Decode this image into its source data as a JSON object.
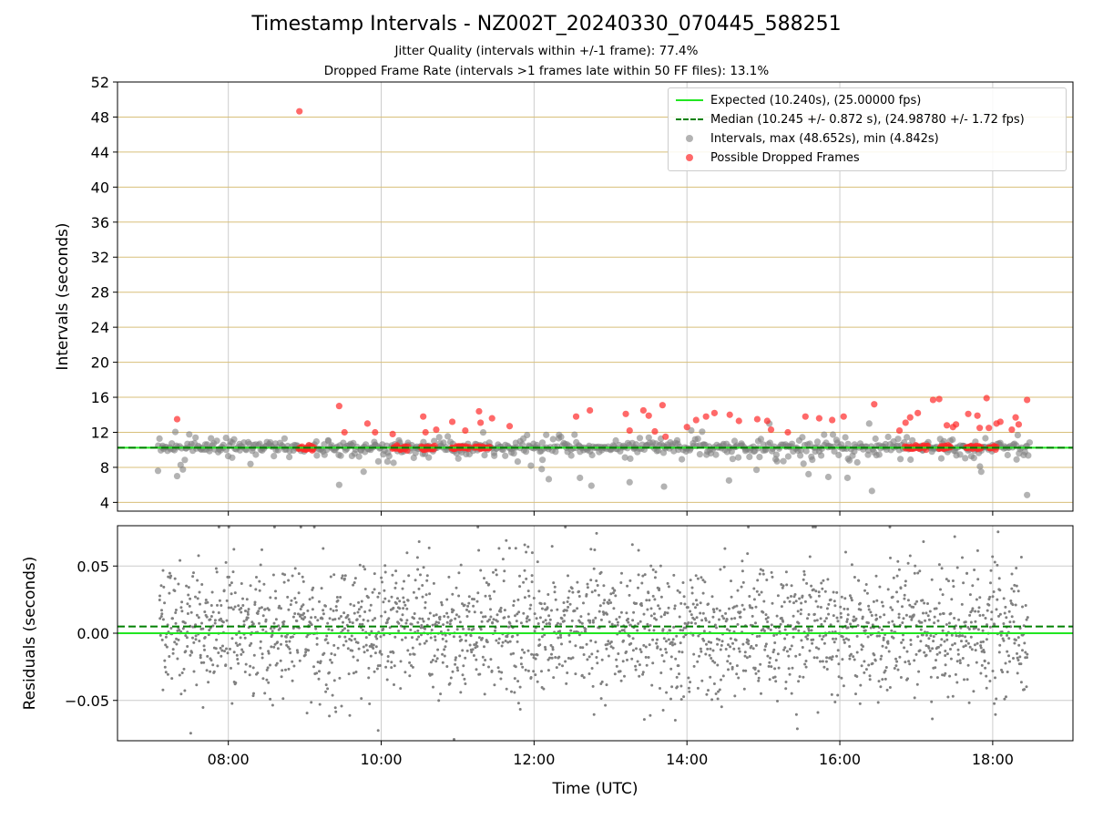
{
  "figure": {
    "title": "Timestamp Intervals - NZ002T_20240330_070445_588251",
    "subtitle_jitter": "Jitter Quality (intervals within +/-1 frame): 77.4%",
    "subtitle_dropped": "Dropped Frame Rate (intervals >1 frames late within 50 FF files): 13.1%"
  },
  "colors": {
    "expected": "#22e622",
    "median": "#008000",
    "intervals": "#808080",
    "dropped": "#ff2a2a",
    "top_grid": "#d8bf7a",
    "grid": "#cccccc"
  },
  "chart_data": [
    {
      "type": "scatter",
      "ylabel": "Intervals (seconds)",
      "ylim": [
        3,
        52
      ],
      "xlim_hours": [
        6.55,
        19.05
      ],
      "y_ticks": [
        "4",
        "8",
        "12",
        "16",
        "20",
        "24",
        "28",
        "32",
        "36",
        "40",
        "44",
        "48",
        "52"
      ],
      "grid": "horizontal",
      "legend_position": "top-right",
      "legend": [
        "Expected (10.240s), (25.00000 fps)",
        "Median (10.245 +/- 0.872 s), (24.98780 +/- 1.72 fps)",
        "Intervals, max (48.652s), min (4.842s)",
        "Possible Dropped Frames"
      ],
      "expected_interval": 10.24,
      "median_interval": 10.245,
      "interval_max": 48.652,
      "interval_min": 4.842,
      "time_range_hours": [
        7.08,
        18.48
      ],
      "series": [
        {
          "name": "Intervals, max (48.652s), min (4.842s)",
          "color": "#808080",
          "note": "dense band around 10.24 s with scatter between ~5 and ~13 s",
          "sample_points": [
            [
              7.08,
              7.6
            ],
            [
              7.33,
              7.0
            ],
            [
              9.45,
              6.0
            ],
            [
              9.77,
              7.5
            ],
            [
              12.1,
              7.8
            ],
            [
              12.6,
              6.8
            ],
            [
              12.75,
              5.9
            ],
            [
              13.25,
              6.3
            ],
            [
              13.7,
              5.8
            ],
            [
              14.55,
              6.5
            ],
            [
              15.85,
              6.9
            ],
            [
              16.1,
              6.8
            ],
            [
              16.42,
              5.3
            ],
            [
              17.85,
              7.5
            ],
            [
              18.45,
              4.842
            ]
          ]
        },
        {
          "name": "Possible Dropped Frames",
          "color": "#ff2a2a",
          "points": [
            [
              7.33,
              13.5
            ],
            [
              8.93,
              48.652
            ],
            [
              9.45,
              15.0
            ],
            [
              9.52,
              12.0
            ],
            [
              9.82,
              13.0
            ],
            [
              9.92,
              12.0
            ],
            [
              10.15,
              11.8
            ],
            [
              10.55,
              13.8
            ],
            [
              10.58,
              12.0
            ],
            [
              10.72,
              12.3
            ],
            [
              10.93,
              13.2
            ],
            [
              11.1,
              12.2
            ],
            [
              11.28,
              14.4
            ],
            [
              11.3,
              13.1
            ],
            [
              11.45,
              13.6
            ],
            [
              11.68,
              12.7
            ],
            [
              12.55,
              13.8
            ],
            [
              12.73,
              14.5
            ],
            [
              13.2,
              14.1
            ],
            [
              13.25,
              12.2
            ],
            [
              13.43,
              14.5
            ],
            [
              13.5,
              13.9
            ],
            [
              13.58,
              12.1
            ],
            [
              13.68,
              15.1
            ],
            [
              13.72,
              11.5
            ],
            [
              14.0,
              12.6
            ],
            [
              14.12,
              13.4
            ],
            [
              14.25,
              13.8
            ],
            [
              14.36,
              14.2
            ],
            [
              14.56,
              14.0
            ],
            [
              14.68,
              13.3
            ],
            [
              14.92,
              13.5
            ],
            [
              15.05,
              13.3
            ],
            [
              15.1,
              12.3
            ],
            [
              15.32,
              12.0
            ],
            [
              15.55,
              13.8
            ],
            [
              15.73,
              13.6
            ],
            [
              15.9,
              13.4
            ],
            [
              16.05,
              13.8
            ],
            [
              16.45,
              15.2
            ],
            [
              16.78,
              12.2
            ],
            [
              16.86,
              13.1
            ],
            [
              16.92,
              13.7
            ],
            [
              17.02,
              14.2
            ],
            [
              17.22,
              15.7
            ],
            [
              17.3,
              15.8
            ],
            [
              17.4,
              12.8
            ],
            [
              17.48,
              12.6
            ],
            [
              17.52,
              12.9
            ],
            [
              17.68,
              14.1
            ],
            [
              17.8,
              13.9
            ],
            [
              17.83,
              12.5
            ],
            [
              17.92,
              15.9
            ],
            [
              17.95,
              12.5
            ],
            [
              18.05,
              13.0
            ],
            [
              18.1,
              13.2
            ],
            [
              18.25,
              12.3
            ],
            [
              18.3,
              13.7
            ],
            [
              18.34,
              12.9
            ],
            [
              18.45,
              15.7
            ]
          ]
        }
      ]
    },
    {
      "type": "scatter",
      "xlabel": "Time (UTC)",
      "ylabel": "Residuals (seconds)",
      "ylim": [
        -0.08,
        0.08
      ],
      "xlim_hours": [
        6.55,
        19.05
      ],
      "y_ticks": [
        "0.05",
        "0.00",
        "−0.05"
      ],
      "x_ticks": [
        "08:00",
        "10:00",
        "12:00",
        "14:00",
        "16:00",
        "18:00"
      ],
      "grid": "both",
      "expected_residual": 0.0,
      "median_residual": 0.005,
      "series": [
        {
          "color": "#808080",
          "note": "dense scatter of residuals, mostly within ±0.06 s"
        }
      ]
    }
  ]
}
